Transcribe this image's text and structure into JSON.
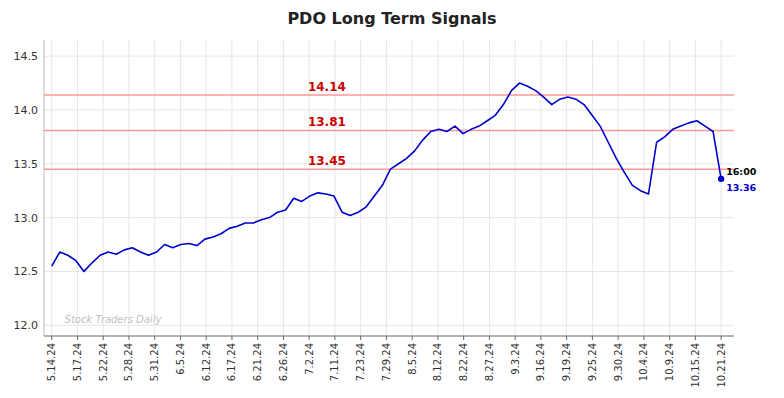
{
  "chart_data": {
    "type": "line",
    "title": "PDO Long Term Signals",
    "color": "#0000cc",
    "marker": "last",
    "grid": true,
    "xlim": [
      -0.3,
      26.5
    ],
    "xticks": [
      {
        "value": 0,
        "label": "5.14.24"
      },
      {
        "value": 1,
        "label": "5.17.24"
      },
      {
        "value": 2,
        "label": "5.22.24"
      },
      {
        "value": 3,
        "label": "5.28.24"
      },
      {
        "value": 4,
        "label": "5.31.24"
      },
      {
        "value": 5,
        "label": "6.5.24"
      },
      {
        "value": 6,
        "label": "6.12.24"
      },
      {
        "value": 7,
        "label": "6.17.24"
      },
      {
        "value": 8,
        "label": "6.21.24"
      },
      {
        "value": 9,
        "label": "6.26.24"
      },
      {
        "value": 10,
        "label": "7.2.24"
      },
      {
        "value": 11,
        "label": "7.11.24"
      },
      {
        "value": 12,
        "label": "7.23.24"
      },
      {
        "value": 13,
        "label": "7.29.24"
      },
      {
        "value": 14,
        "label": "8.5.24"
      },
      {
        "value": 15,
        "label": "8.12.24"
      },
      {
        "value": 16,
        "label": "8.22.24"
      },
      {
        "value": 17,
        "label": "8.27.24"
      },
      {
        "value": 18,
        "label": "9.3.24"
      },
      {
        "value": 19,
        "label": "9.16.24"
      },
      {
        "value": 20,
        "label": "9.19.24"
      },
      {
        "value": 21,
        "label": "9.25.24"
      },
      {
        "value": 22,
        "label": "9.30.24"
      },
      {
        "value": 23,
        "label": "10.4.24"
      },
      {
        "value": 24,
        "label": "10.9.24"
      },
      {
        "value": 25,
        "label": "10.15.24"
      },
      {
        "value": 26,
        "label": "10.21.24"
      }
    ],
    "ylim": [
      11.9,
      14.65
    ],
    "yticks": [
      {
        "value": 12,
        "label": "12.0"
      },
      12.5,
      {
        "value": 13,
        "label": "13.0"
      },
      13.5,
      {
        "value": 14,
        "label": "14.0"
      },
      14.5
    ],
    "x": [
      0,
      0.3133,
      0.6265,
      0.9398,
      1.253,
      1.5663,
      1.8795,
      2.1928,
      2.506,
      2.8193,
      3.1325,
      3.4458,
      3.759,
      4.0723,
      4.3855,
      4.6988,
      5.012,
      5.3253,
      5.6386,
      5.9518,
      6.2651,
      6.5783,
      6.8916,
      7.2048,
      7.5181,
      7.8313,
      8.1446,
      8.4578,
      8.7711,
      9.0843,
      9.3976,
      9.7108,
      10.0241,
      10.3373,
      10.6506,
      10.9639,
      11.2771,
      11.5904,
      11.9036,
      12.2169,
      12.5301,
      12.8434,
      13.1566,
      13.4699,
      13.7831,
      14.0964,
      14.4096,
      14.7229,
      15.0361,
      15.3494,
      15.6627,
      15.9759,
      16.2892,
      16.6024,
      16.9157,
      17.2289,
      17.5422,
      17.8554,
      18.1687,
      18.4819,
      18.7952,
      19.1084,
      19.4217,
      19.7349,
      20.0482,
      20.3614,
      20.6747,
      20.988,
      21.3012,
      21.6145,
      21.9277,
      22.241,
      22.5542,
      22.8675,
      23.1807,
      23.494,
      23.8072,
      24.1205,
      24.4337,
      24.747,
      25.0602,
      25.3735,
      25.6867,
      26
    ],
    "values": [
      12.55,
      12.68,
      12.65,
      12.6,
      12.5,
      12.58,
      12.65,
      12.68,
      12.66,
      12.7,
      12.72,
      12.68,
      12.65,
      12.68,
      12.75,
      12.72,
      12.75,
      12.76,
      12.74,
      12.8,
      12.82,
      12.85,
      12.9,
      12.92,
      12.95,
      12.95,
      12.98,
      13.0,
      13.05,
      13.07,
      13.18,
      13.15,
      13.2,
      13.23,
      13.22,
      13.2,
      13.05,
      13.02,
      13.05,
      13.1,
      13.2,
      13.3,
      13.45,
      13.5,
      13.55,
      13.62,
      13.72,
      13.8,
      13.82,
      13.8,
      13.85,
      13.78,
      13.82,
      13.85,
      13.9,
      13.95,
      14.05,
      14.18,
      14.25,
      14.22,
      14.18,
      14.12,
      14.05,
      14.1,
      14.12,
      14.1,
      14.05,
      13.95,
      13.85,
      13.7,
      13.55,
      13.42,
      13.3,
      13.25,
      13.22,
      13.7,
      13.75,
      13.82,
      13.85,
      13.88,
      13.9,
      13.85,
      13.8,
      13.36
    ],
    "hlines": {
      "values": [
        14.14,
        13.81,
        13.45
      ],
      "color": "#ff9999",
      "label_color": "#cc0000"
    },
    "end_labels": [
      {
        "text": "16:00"
      },
      {
        "text": "13.36",
        "color": "#0000cc"
      }
    ],
    "watermark": {
      "text": "Stock Traders Daily",
      "color": "#c0c0c0"
    }
  }
}
